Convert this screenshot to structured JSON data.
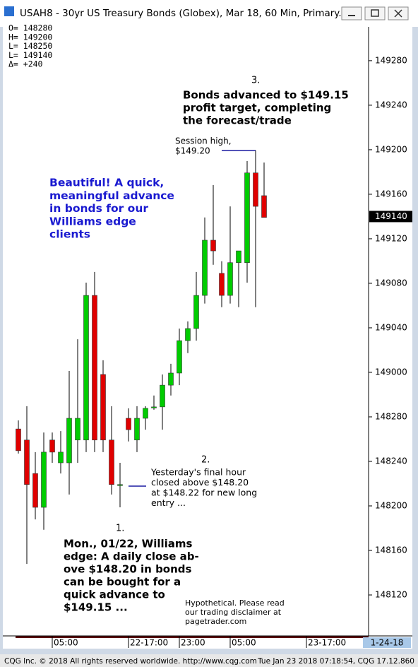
{
  "window_title": "USAH8 - 30yr US Treasury Bonds (Globex), Mar 18, 60 Min, Primary...",
  "footer_left": "CQG Inc. © 2018 All rights reserved worldwide. http://www.cqg.com",
  "footer_right": "Tue Jan 23 2018 07:18:54, CQG 17.12.860",
  "chart_data": {
    "type": "candlestick",
    "readout": [
      "O= 148280",
      "H= 149200",
      "L= 148250",
      "L= 149140",
      "Δ=    +240"
    ],
    "candles": {
      "open": [
        148.841,
        148.81,
        148.716,
        148.621,
        148.81,
        148.746,
        148.746,
        148.81,
        148.81,
        149.216,
        148.994,
        148.81,
        148.685,
        148.871,
        148.81,
        148.871,
        148.903,
        148.903,
        148.964,
        148.998,
        149.089,
        149.123,
        149.216,
        149.371,
        149.278,
        149.216,
        149.308,
        149.308,
        149.56,
        149.496
      ],
      "high": [
        148.865,
        148.905,
        148.776,
        148.831,
        148.831,
        148.835,
        149.004,
        149.093,
        149.252,
        149.282,
        149.034,
        148.905,
        148.746,
        148.899,
        148.905,
        148.905,
        148.935,
        148.994,
        149.024,
        149.123,
        149.143,
        149.282,
        149.435,
        149.526,
        149.312,
        149.466,
        149.341,
        149.593,
        149.623,
        149.589
      ],
      "low": [
        148.772,
        148.462,
        148.587,
        148.558,
        148.746,
        148.716,
        148.657,
        148.746,
        148.776,
        148.776,
        148.776,
        148.657,
        148.621,
        148.806,
        148.776,
        148.839,
        148.895,
        148.839,
        148.935,
        148.964,
        149.054,
        149.089,
        149.193,
        149.302,
        149.183,
        149.193,
        149.183,
        149.252,
        149.183,
        149.435
      ],
      "close": [
        148.78,
        148.685,
        148.621,
        148.776,
        148.776,
        148.776,
        148.871,
        148.871,
        149.216,
        148.81,
        148.81,
        148.685,
        148.685,
        148.839,
        148.871,
        148.899,
        148.903,
        148.964,
        148.998,
        149.089,
        149.123,
        149.216,
        149.371,
        149.341,
        149.216,
        149.308,
        149.341,
        149.56,
        149.466,
        149.435
      ]
    },
    "up_color": "#00cc00",
    "down_color": "#e00000",
    "ylim": [
      148.26,
      149.97
    ],
    "yticks": [
      {
        "value": 149.875,
        "label": "149280"
      },
      {
        "value": 149.75,
        "label": "149240"
      },
      {
        "value": 149.625,
        "label": "149200"
      },
      {
        "value": 149.5,
        "label": "149160"
      },
      {
        "value": 149.375,
        "label": "149120"
      },
      {
        "value": 149.25,
        "label": "149080"
      },
      {
        "value": 149.125,
        "label": "149040"
      },
      {
        "value": 149.0,
        "label": "149000"
      },
      {
        "value": 148.875,
        "label": "148280"
      },
      {
        "value": 148.75,
        "label": "148240"
      },
      {
        "value": 148.625,
        "label": "148200"
      },
      {
        "value": 148.5,
        "label": "148160"
      },
      {
        "value": 148.375,
        "label": "148120"
      }
    ],
    "last_price": {
      "value": 149.4375,
      "label": "149140"
    },
    "xticks": [
      {
        "value": 4,
        "label": "05:00"
      },
      {
        "value": 13,
        "label": "22-17:00"
      },
      {
        "value": 19,
        "label": "23:00"
      },
      {
        "value": 25,
        "label": "05:00"
      },
      {
        "value": 34,
        "label": "23-17:00"
      }
    ],
    "date_label": "1-24-18",
    "annotations": [
      {
        "marker": "3.",
        "lines": [
          "Bonds advanced to $149.15",
          "profit target, completing",
          "the forecast/trade"
        ]
      },
      {
        "lines": [
          "Session high,",
          "$149.20"
        ]
      },
      {
        "lines": [
          "Beautiful! A quick,",
          "meaningful advance",
          "in bonds for our",
          "Williams edge",
          "clients"
        ]
      },
      {
        "marker": "2.",
        "lines": [
          "Yesterday's final hour",
          "closed above $148.20",
          "at $148.22 for new long",
          "entry ..."
        ]
      },
      {
        "marker": "1.",
        "lines": [
          "Mon., 01/22, Williams",
          "edge: A daily close ab-",
          "ove $148.20 in bonds",
          "can be bought for a",
          "quick advance to",
          "$149.15 ..."
        ]
      },
      {
        "lines": [
          "Hypothetical.  Please read",
          "our trading disclaimer at",
          "pagetrader.com"
        ]
      }
    ]
  }
}
